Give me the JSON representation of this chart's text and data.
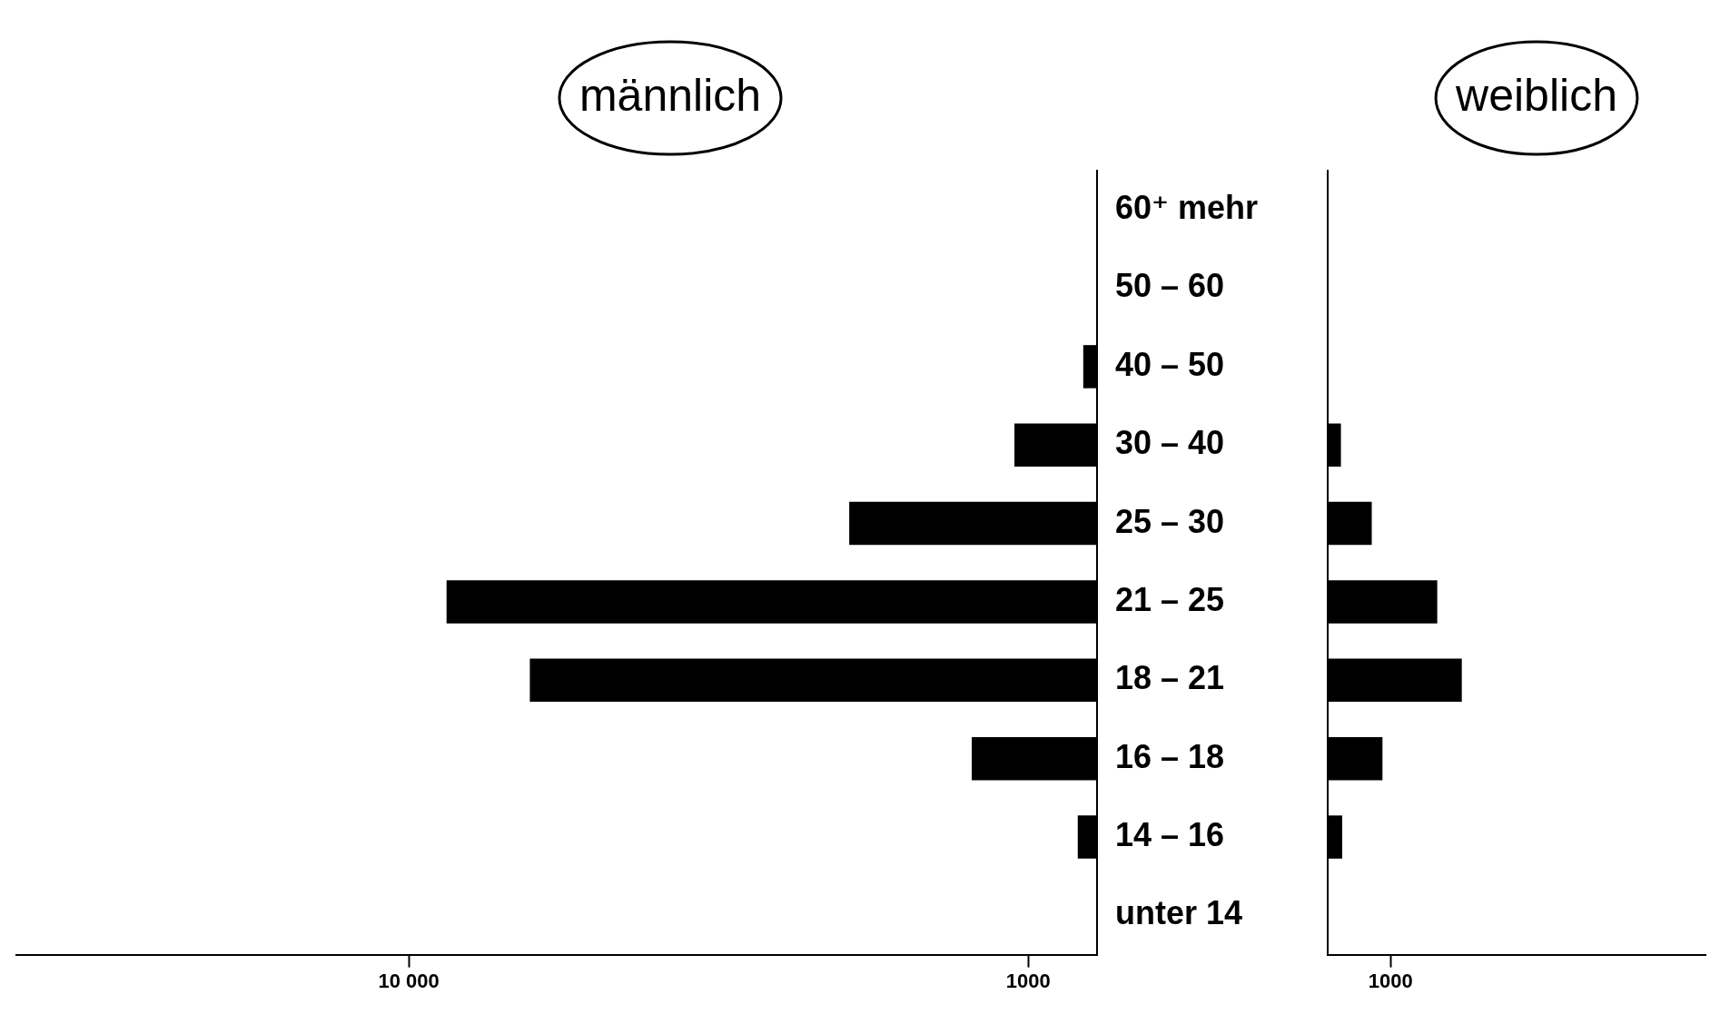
{
  "chart_data": [
    {
      "type": "bar",
      "orientation": "horizontal",
      "title": "männlich",
      "categories": [
        "60⁺ mehr",
        "50 – 60",
        "40 – 50",
        "30 – 40",
        "25 – 30",
        "21 – 25",
        "18 – 21",
        "16 – 18",
        "14 – 16",
        "unter 14"
      ],
      "values": [
        0,
        0,
        200,
        1200,
        3600,
        9450,
        8240,
        1820,
        280,
        0
      ],
      "color": "#000000",
      "xlim": [
        15700,
        0
      ],
      "xticks": [
        {
          "value": 10000,
          "label": "10 000"
        },
        1000
      ],
      "grid": false
    },
    {
      "type": "bar",
      "orientation": "horizontal",
      "title": "weiblich",
      "categories": [
        null,
        null,
        null,
        null,
        null,
        null,
        null,
        null,
        null,
        null
      ],
      "values": [
        0,
        0,
        0,
        210,
        700,
        1740,
        2130,
        870,
        230,
        0
      ],
      "color": "#000000",
      "xlim": [
        0,
        6000
      ],
      "xticks": [
        1000
      ],
      "grid": false,
      "tick_labels": "x"
    }
  ]
}
